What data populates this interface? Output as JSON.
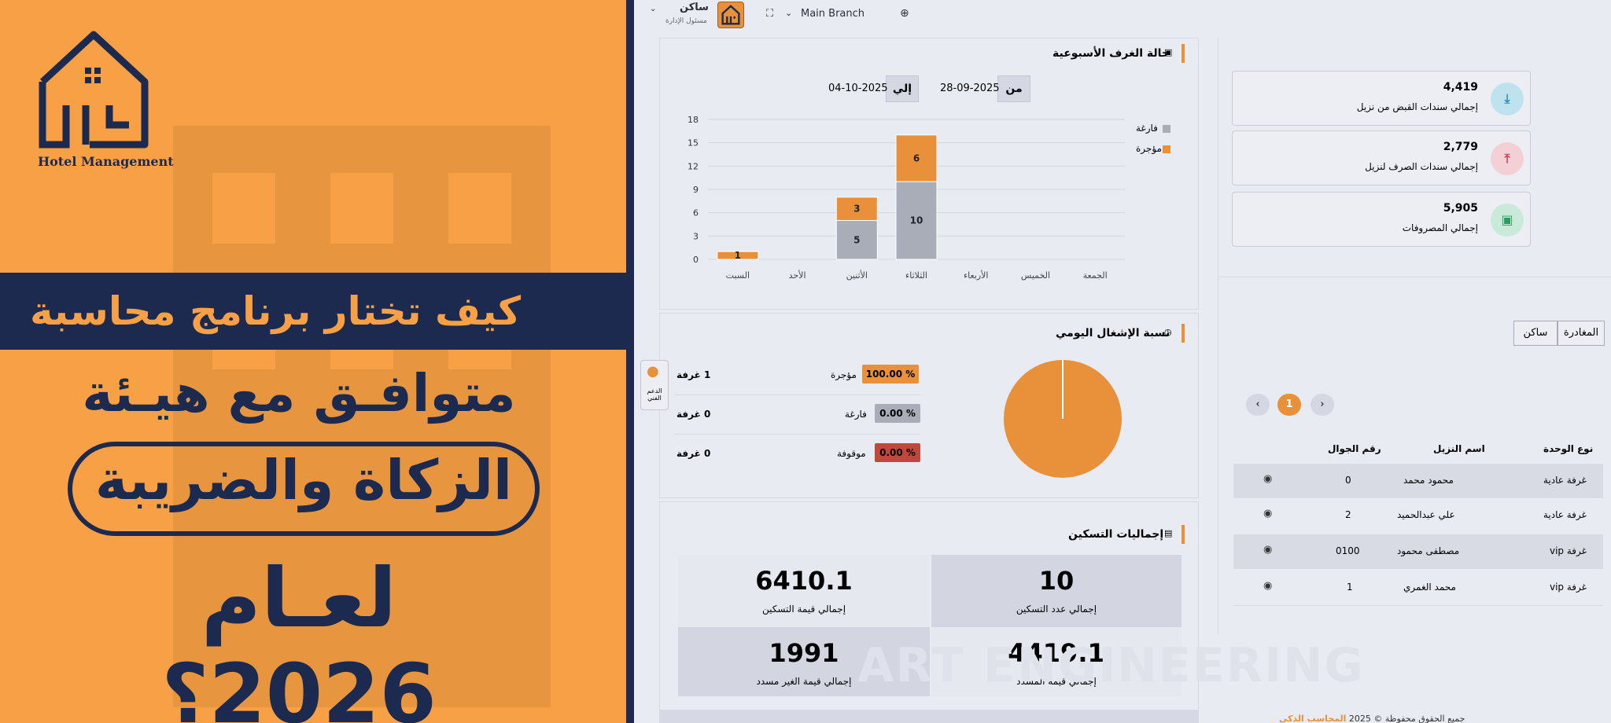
{
  "banner": {
    "logo_text": "Hotel Management",
    "strip_text": "كيف تختار برنامج محاسبة",
    "line2": "متوافـق مع هيـئة",
    "pill_text": "الزكاة والضريبة",
    "line4": "لعـام 2026؟",
    "colors": {
      "orange": "#f7a045",
      "navy": "#1b2a4e"
    }
  },
  "topbar": {
    "user_name": "ساكن",
    "user_role": "مسئول الإدارة",
    "branch": "Main Branch"
  },
  "weekly": {
    "title": "حالة الغرف الأسبوعية",
    "from_label": "من",
    "from_date": "28-09-2025",
    "to_label": "إلي",
    "to_date": "04-10-2025"
  },
  "chart_data": {
    "type": "bar",
    "stacked": true,
    "categories": [
      "السبت",
      "الأحد",
      "الأثنين",
      "الثلاثاء",
      "الأربعاء",
      "الخميس",
      "الجمعة"
    ],
    "series": [
      {
        "name": "فارغة",
        "color": "#a9adb8",
        "values": [
          0,
          0,
          5,
          10,
          0,
          0,
          0
        ]
      },
      {
        "name": "مؤجرة",
        "color": "#e8913a",
        "values": [
          1,
          0,
          3,
          6,
          0,
          0,
          0
        ]
      }
    ],
    "yticks": [
      0,
      3,
      6,
      9,
      12,
      15,
      18
    ],
    "ylim": [
      0,
      18
    ],
    "grid": true,
    "legend": "top-right"
  },
  "occupancy": {
    "title": "نسبة الإشغال اليومي",
    "rows": [
      {
        "count": "1 غرفة",
        "name": "مؤجرة",
        "badge": "100.00 %",
        "color": "#e8913a"
      },
      {
        "count": "0 غرفة",
        "name": "فارغة",
        "badge": "0.00 %",
        "color": "#a9adb8"
      },
      {
        "count": "0 غرفة",
        "name": "موقوفة",
        "badge": "0.00 %",
        "color": "#c0473a"
      }
    ],
    "pie_color": "#e8913a",
    "support_chip": "الدعم الفني"
  },
  "totals": {
    "title": "إجماليات التسكين",
    "cells": [
      {
        "value": "10",
        "label": "إجمالي عدد التسكين"
      },
      {
        "value": "6410.1",
        "label": "إجمالي قيمة التسكين"
      },
      {
        "value": "4419.1",
        "label": "إجمالي قيمة المسدد"
      },
      {
        "value": "1991",
        "label": "إجمالي قيمة الغير مسدد"
      }
    ]
  },
  "stats": [
    {
      "value": "4,419",
      "label": "إجمالي سندات القبض من نزيل",
      "icon": "download-icon",
      "color": "#bfe3ee",
      "fg": "#2b8fb0"
    },
    {
      "value": "2,779",
      "label": "إجمالي سندات الصرف لنزيل",
      "icon": "upload-icon",
      "color": "#f3d0d6",
      "fg": "#c0475a"
    },
    {
      "value": "5,905",
      "label": "إجمالي المصروفات",
      "icon": "cash-icon",
      "color": "#c9ead8",
      "fg": "#2f9a5f"
    }
  ],
  "tabs": [
    "ساكن",
    "المغادرة"
  ],
  "pagination": {
    "prev": "‹",
    "current": "1",
    "next": "›"
  },
  "table": {
    "headers": [
      "نوع الوحدة",
      "اسم النزيل",
      "رقم الجوال"
    ],
    "rows": [
      {
        "type": "غرفة عادية",
        "name": "محمود محمد",
        "phone": "0"
      },
      {
        "type": "غرفة عادية",
        "name": "علي عبدالحميد",
        "phone": "2"
      },
      {
        "type": "غرفة vip",
        "name": "مصطفى محمود",
        "phone": "0100"
      },
      {
        "type": "غرفة vip",
        "name": "محمد الغمري",
        "phone": "1"
      }
    ]
  },
  "footer": {
    "text": "جميع الحقوق محفوظة © 2025",
    "link": "المحاسب الذكي"
  },
  "watermark": "ART ENGINEERING"
}
